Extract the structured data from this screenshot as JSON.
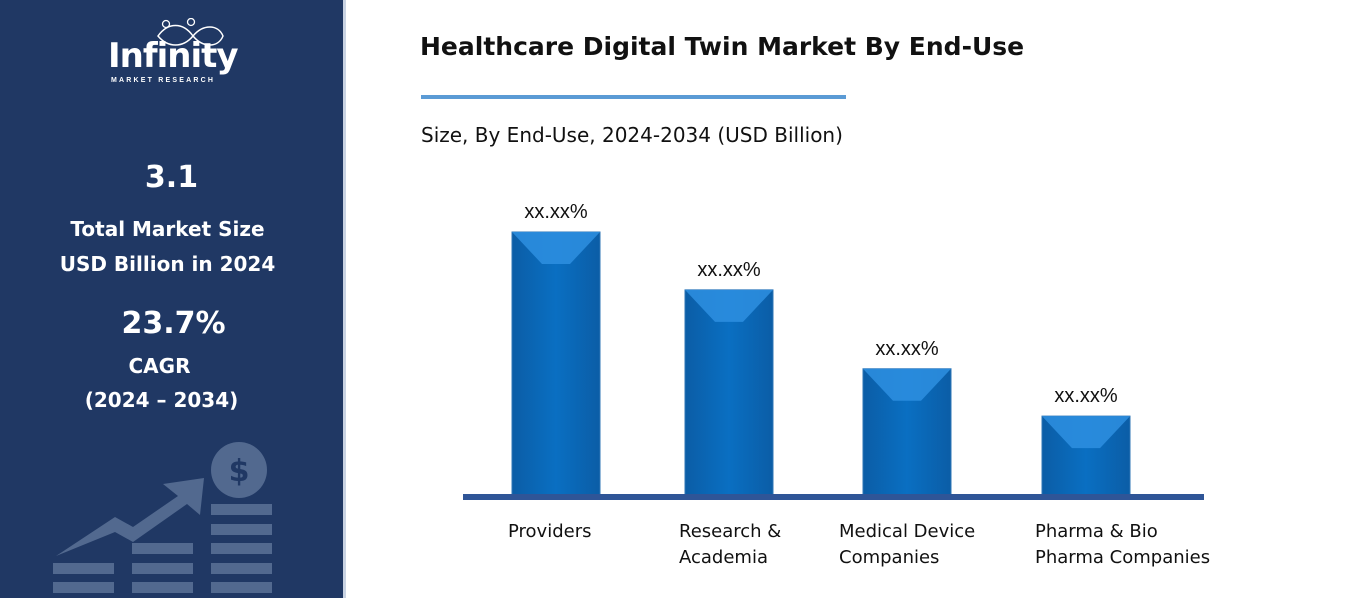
{
  "sidebar": {
    "logo": {
      "word": "Infinity",
      "sub": "MARKET RESEARCH"
    },
    "market_size": "3.1",
    "market_size_label_1": "Total Market Size",
    "market_size_label_2": "USD Billion in 2024",
    "cagr": "23.7%",
    "cagr_label": "CAGR",
    "cagr_period": "(2024 – 2034)",
    "icon": "growth-chart-dollar-icon"
  },
  "colors": {
    "sidebar": "#203864",
    "bar": "#0070c0",
    "axis": "#2f5597",
    "underline": "#5b9bd5"
  },
  "chart_data": {
    "type": "bar",
    "title": "Healthcare Digital Twin Market By End-Use",
    "subtitle": "Size, By End-Use, 2024-2034 (USD Billion)",
    "categories": [
      "Providers",
      "Research &\nAcademia",
      "Medical Device\nCompanies",
      "Pharma & Bio\nPharma Companies"
    ],
    "values": [
      100,
      78,
      48,
      30
    ],
    "data_labels": [
      "xx.xx%",
      "xx.xx%",
      "xx.xx%",
      "xx.xx%"
    ],
    "ylim": [
      0,
      100
    ],
    "grid": false,
    "legend": "none"
  }
}
